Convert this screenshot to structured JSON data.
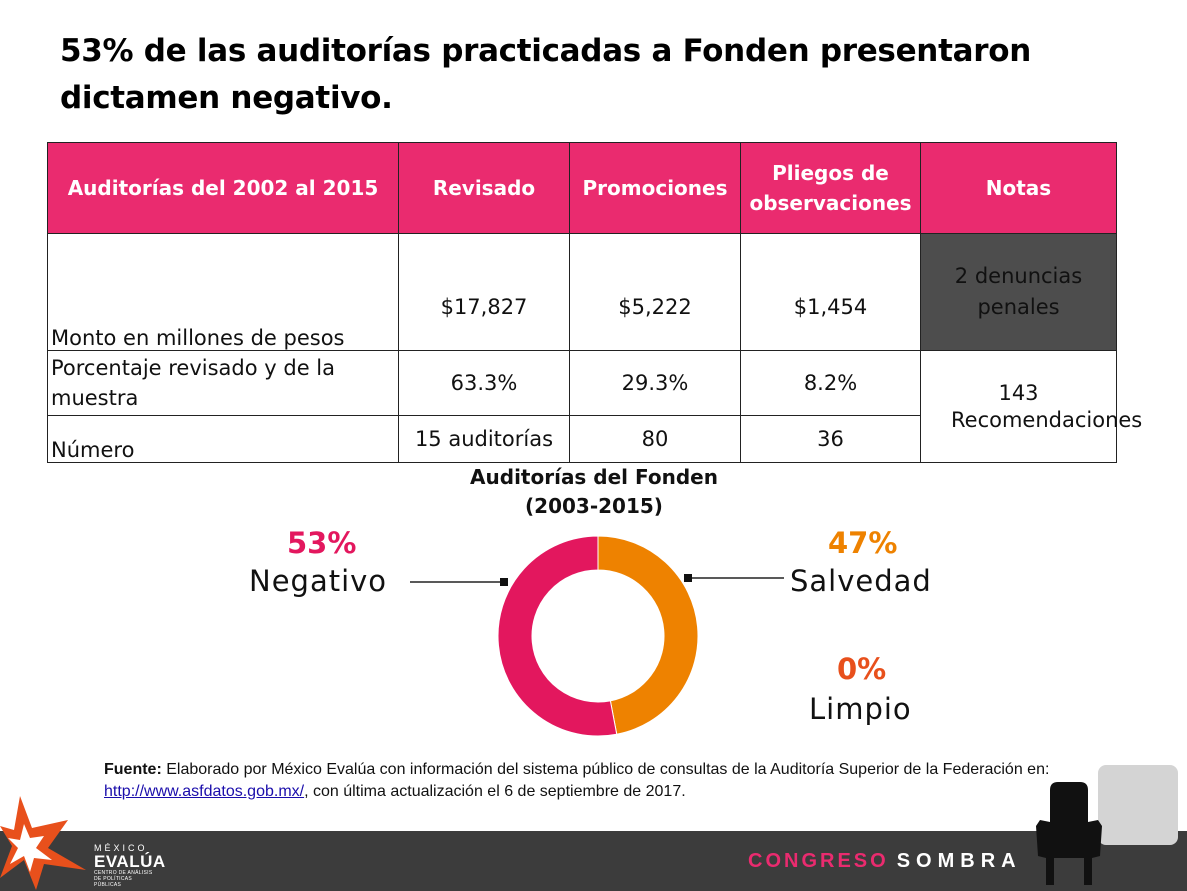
{
  "title": "53% de las auditorías practicadas a Fonden presentaron dictamen negativo.",
  "table": {
    "headers": [
      "Auditorías del 2002 al 2015",
      "Revisado",
      "Promociones",
      "Pliegos de observaciones",
      "Notas"
    ],
    "rows": [
      {
        "label": "Monto en millones de pesos",
        "revisado": "$17,827",
        "promociones": "$5,222",
        "pliegos": "$1,454"
      },
      {
        "label": "Porcentaje revisado y de la muestra",
        "revisado": "63.3%",
        "promociones": "29.3%",
        "pliegos": "8.2%"
      },
      {
        "label": "Número",
        "revisado": "15 auditorías",
        "promociones": "80",
        "pliegos": "36"
      }
    ],
    "notes": {
      "denuncias": "2 denuncias penales",
      "recomendaciones": "143 Recomendaciones"
    }
  },
  "chart_data": {
    "type": "pie",
    "title": "Auditorías del Fonden",
    "subtitle": "(2003-2015)",
    "slices": [
      {
        "label": "Negativo",
        "value": 53,
        "display": "53%",
        "color": "#e3175e"
      },
      {
        "label": "Salvedad",
        "value": 47,
        "display": "47%",
        "color": "#ee8200"
      },
      {
        "label": "Limpio",
        "value": 0,
        "display": "0%",
        "color": "#e8501c"
      }
    ],
    "hole": true
  },
  "source": {
    "label": "Fuente:",
    "text_before": " Elaborado por México Evalúa con información del sistema público de consultas de la Auditoría Superior de la Federación en: ",
    "link": "http://www.asfdatos.gob.mx/",
    "text_after": ", con última actualización el 6 de septiembre de 2017."
  },
  "footer": {
    "brand_line1": "MÉXICO",
    "brand_line2": "EVALÚA",
    "brand_line3": "CENTRO DE ANÁLISIS DE POLÍTICAS PÚBLICAS",
    "congreso": "CONGRESO",
    "sombra": "SOMBRA"
  }
}
